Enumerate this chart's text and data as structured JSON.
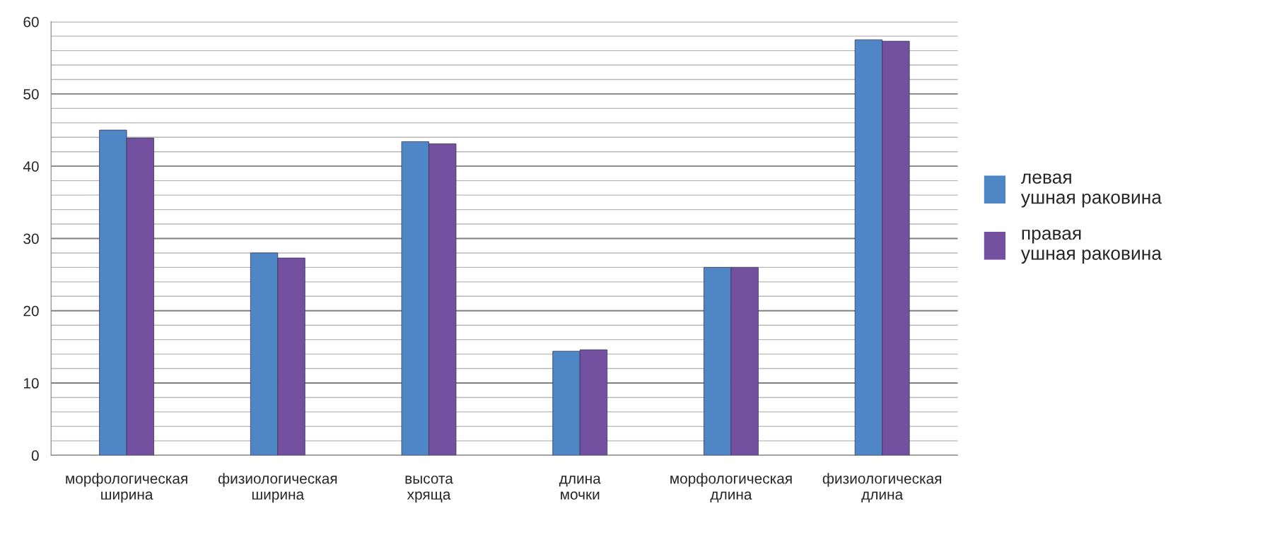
{
  "chart_data": {
    "type": "bar",
    "categories": [
      "морфологическая\nширина",
      "физиологическая\nширина",
      "высота\nхряща",
      "длина\nмочки",
      "морфологическая\nдлина",
      "физиологическая\nдлина"
    ],
    "series": [
      {
        "name": "левая\nушная раковина",
        "color": "#4f86c6",
        "values": [
          45,
          28,
          43.4,
          14.4,
          26,
          57.5
        ]
      },
      {
        "name": "правая\nушная раковина",
        "color": "#7450a0",
        "values": [
          43.9,
          27.3,
          43.1,
          14.6,
          26,
          57.3
        ]
      }
    ],
    "ylim": [
      0,
      60
    ],
    "yticks": [
      0,
      {
        "value": 2,
        "label": null
      },
      {
        "value": 4,
        "label": null
      },
      {
        "value": 6,
        "label": null
      },
      {
        "value": 8,
        "label": null
      },
      10,
      {
        "value": 12,
        "label": null
      },
      {
        "value": 14,
        "label": null
      },
      {
        "value": 16,
        "label": null
      },
      {
        "value": 18,
        "label": null
      },
      20,
      {
        "value": 22,
        "label": null
      },
      {
        "value": 24,
        "label": null
      },
      {
        "value": 26,
        "label": null
      },
      {
        "value": 28,
        "label": null
      },
      30,
      {
        "value": 32,
        "label": null
      },
      {
        "value": 34,
        "label": null
      },
      {
        "value": 36,
        "label": null
      },
      {
        "value": 38,
        "label": null
      },
      40,
      {
        "value": 42,
        "label": null
      },
      {
        "value": 44,
        "label": null
      },
      {
        "value": 46,
        "label": null
      },
      {
        "value": 48,
        "label": null
      },
      50,
      {
        "value": 52,
        "label": null
      },
      {
        "value": 54,
        "label": null
      },
      {
        "value": 56,
        "label": null
      },
      {
        "value": 58,
        "label": null
      },
      60
    ],
    "grid": "y",
    "legend": "right"
  }
}
